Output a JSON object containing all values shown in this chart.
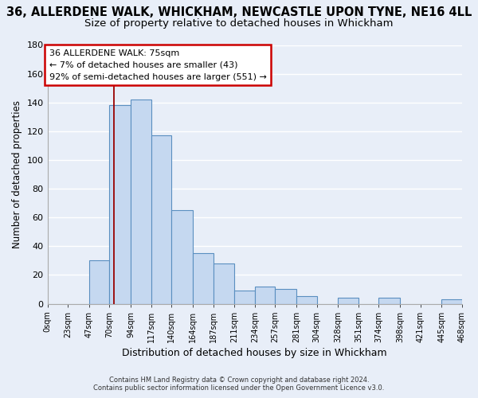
{
  "title": "36, ALLERDENE WALK, WHICKHAM, NEWCASTLE UPON TYNE, NE16 4LL",
  "subtitle": "Size of property relative to detached houses in Whickham",
  "xlabel": "Distribution of detached houses by size in Whickham",
  "ylabel": "Number of detached properties",
  "bar_color": "#c5d8f0",
  "bar_edge_color": "#5a8fc0",
  "bin_edges": [
    0,
    23,
    47,
    70,
    94,
    117,
    140,
    164,
    187,
    211,
    234,
    257,
    281,
    304,
    328,
    351,
    374,
    398,
    421,
    445,
    468
  ],
  "bin_labels": [
    "0sqm",
    "23sqm",
    "47sqm",
    "70sqm",
    "94sqm",
    "117sqm",
    "140sqm",
    "164sqm",
    "187sqm",
    "211sqm",
    "234sqm",
    "257sqm",
    "281sqm",
    "304sqm",
    "328sqm",
    "351sqm",
    "374sqm",
    "398sqm",
    "421sqm",
    "445sqm",
    "468sqm"
  ],
  "counts": [
    0,
    0,
    30,
    138,
    142,
    117,
    65,
    35,
    28,
    9,
    12,
    10,
    5,
    0,
    4,
    0,
    4,
    0,
    0,
    3
  ],
  "ylim": [
    0,
    180
  ],
  "yticks": [
    0,
    20,
    40,
    60,
    80,
    100,
    120,
    140,
    160,
    180
  ],
  "vline_x": 75,
  "vline_color": "#990000",
  "annotation_title": "36 ALLERDENE WALK: 75sqm",
  "annotation_line1": "← 7% of detached houses are smaller (43)",
  "annotation_line2": "92% of semi-detached houses are larger (551) →",
  "annotation_box_color": "#ffffff",
  "annotation_box_edge": "#cc0000",
  "footer_line1": "Contains HM Land Registry data © Crown copyright and database right 2024.",
  "footer_line2": "Contains public sector information licensed under the Open Government Licence v3.0.",
  "background_color": "#e8eef8",
  "plot_bg_color": "#e8eef8",
  "grid_color": "#ffffff",
  "title_fontsize": 10.5,
  "subtitle_fontsize": 9.5
}
